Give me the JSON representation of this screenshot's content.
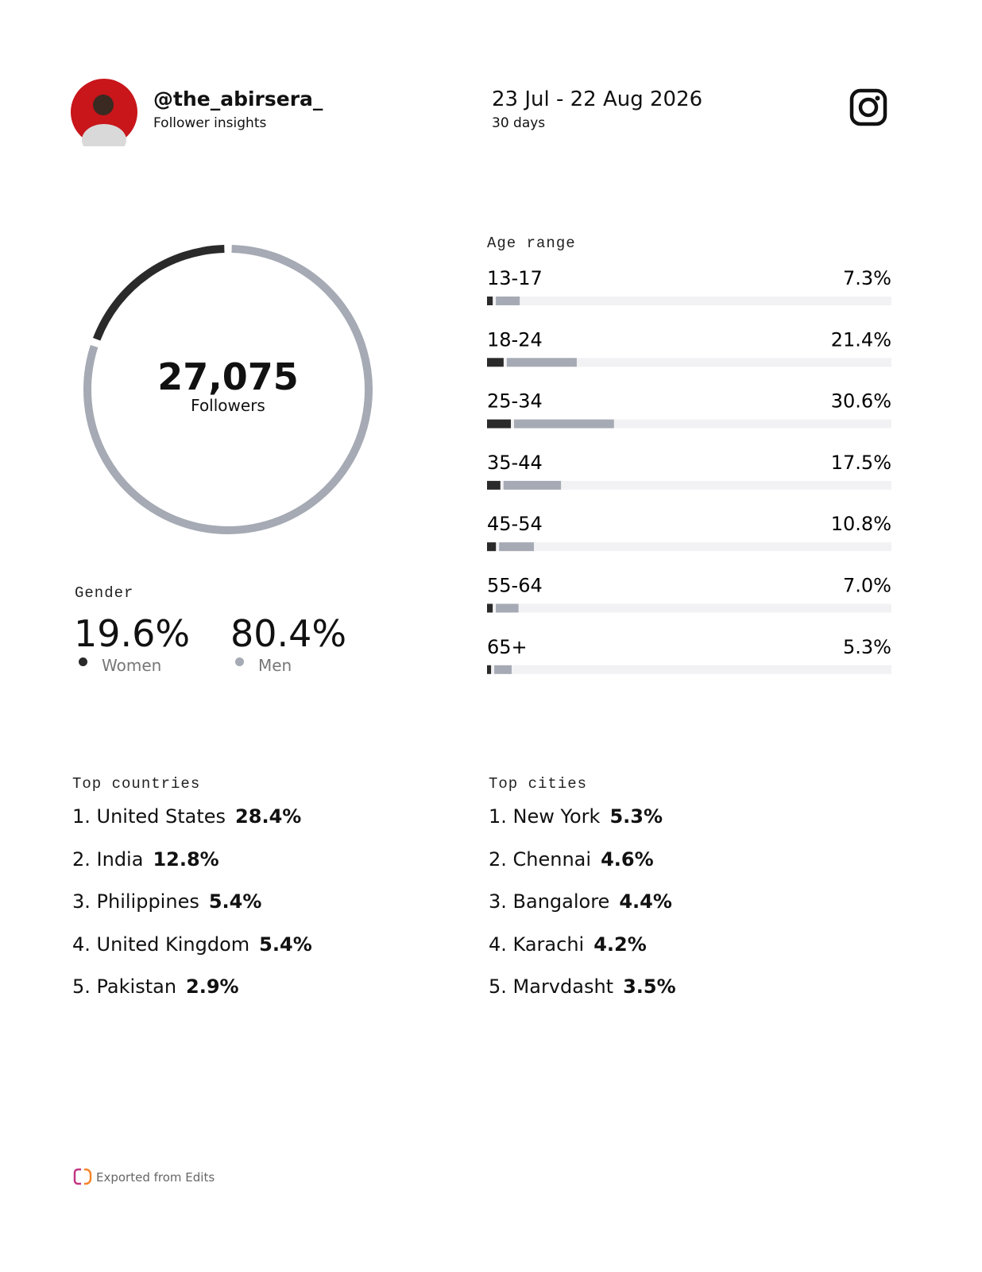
{
  "header": {
    "username": "@the_abirsera_",
    "subtitle": "Follower insights",
    "date_range": "23 Jul - 22 Aug 2026",
    "period": "30 days"
  },
  "followers": {
    "count": "27,075",
    "label": "Followers"
  },
  "gender": {
    "title": "Gender",
    "items": [
      {
        "name": "Women",
        "value": 19.6,
        "label": "19.6%",
        "color": "#2a2a2a"
      },
      {
        "name": "Men",
        "value": 80.4,
        "label": "80.4%",
        "color": "#a5aab4"
      }
    ]
  },
  "age_range": {
    "title": "Age range",
    "xlim": [
      0,
      100
    ],
    "categories": [
      "13-17",
      "18-24",
      "25-34",
      "35-44",
      "45-54",
      "55-64",
      "65+"
    ],
    "values": [
      7.3,
      21.4,
      30.6,
      17.5,
      10.8,
      7.0,
      5.3
    ],
    "value_labels": [
      "7.3%",
      "21.4%",
      "30.6%",
      "17.5%",
      "10.8%",
      "7.0%",
      "5.3%"
    ],
    "women": [
      1.4,
      4.1,
      5.9,
      3.3,
      2.2,
      1.4,
      1.0
    ],
    "men": [
      5.9,
      17.3,
      24.7,
      14.2,
      8.6,
      5.6,
      4.3
    ]
  },
  "top_countries": {
    "title": "Top countries",
    "items": [
      {
        "name": "1. United States",
        "share": "28.4%"
      },
      {
        "name": "2. India",
        "share": "12.8%"
      },
      {
        "name": "3. Philippines",
        "share": "5.4%"
      },
      {
        "name": "4. United Kingdom",
        "share": "5.4%"
      },
      {
        "name": "5. Pakistan",
        "share": "2.9%"
      }
    ]
  },
  "top_cities": {
    "title": "Top cities",
    "items": [
      {
        "name": "1. New York",
        "share": "5.3%"
      },
      {
        "name": "2. Chennai",
        "share": "4.6%"
      },
      {
        "name": "3. Bangalore",
        "share": "4.4%"
      },
      {
        "name": "4. Karachi",
        "share": "4.2%"
      },
      {
        "name": "5. Marvdasht",
        "share": "3.5%"
      }
    ]
  },
  "footer": {
    "text": "Exported from Edits"
  }
}
